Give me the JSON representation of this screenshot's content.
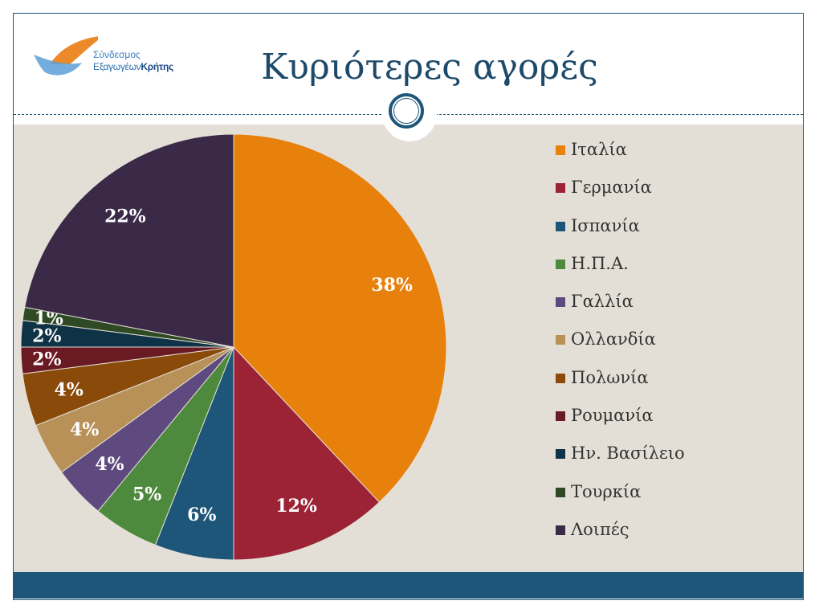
{
  "title": "Κυριότερες αγορές",
  "logo": {
    "line1": "Σύνδεσμος",
    "line2a": "Εξαγωγέων",
    "line2b": "Κρήτης"
  },
  "chart_data": {
    "type": "pie",
    "title": "",
    "start": "12 o'clock, clockwise",
    "legend_position": "right",
    "slices": [
      {
        "label": "Ιταλία",
        "value": 38,
        "text": "38%",
        "color": "#E8800C"
      },
      {
        "label": "Γερμανία",
        "value": 12,
        "text": "12%",
        "color": "#9B2335"
      },
      {
        "label": "Ισπανία",
        "value": 6,
        "text": "6%",
        "color": "#1D5678"
      },
      {
        "label": "Η.Π.Α.",
        "value": 5,
        "text": "5%",
        "color": "#4E8A3E"
      },
      {
        "label": "Γαλλία",
        "value": 4,
        "text": "4%",
        "color": "#5E4A7E"
      },
      {
        "label": "Ολλανδία",
        "value": 4,
        "text": "4%",
        "color": "#B89158"
      },
      {
        "label": "Πολωνία",
        "value": 4,
        "text": "4%",
        "color": "#8A4A0A"
      },
      {
        "label": "Ρουμανία",
        "value": 2,
        "text": "2%",
        "color": "#6A1A22"
      },
      {
        "label": "Ην. Βασίλειο",
        "value": 2,
        "text": "2%",
        "color": "#0F3346"
      },
      {
        "label": "Τουρκία",
        "value": 1,
        "text": "1%",
        "color": "#2D4A24"
      },
      {
        "label": "Λοιπές",
        "value": 22,
        "text": "22%",
        "color": "#3A2A48"
      }
    ]
  }
}
